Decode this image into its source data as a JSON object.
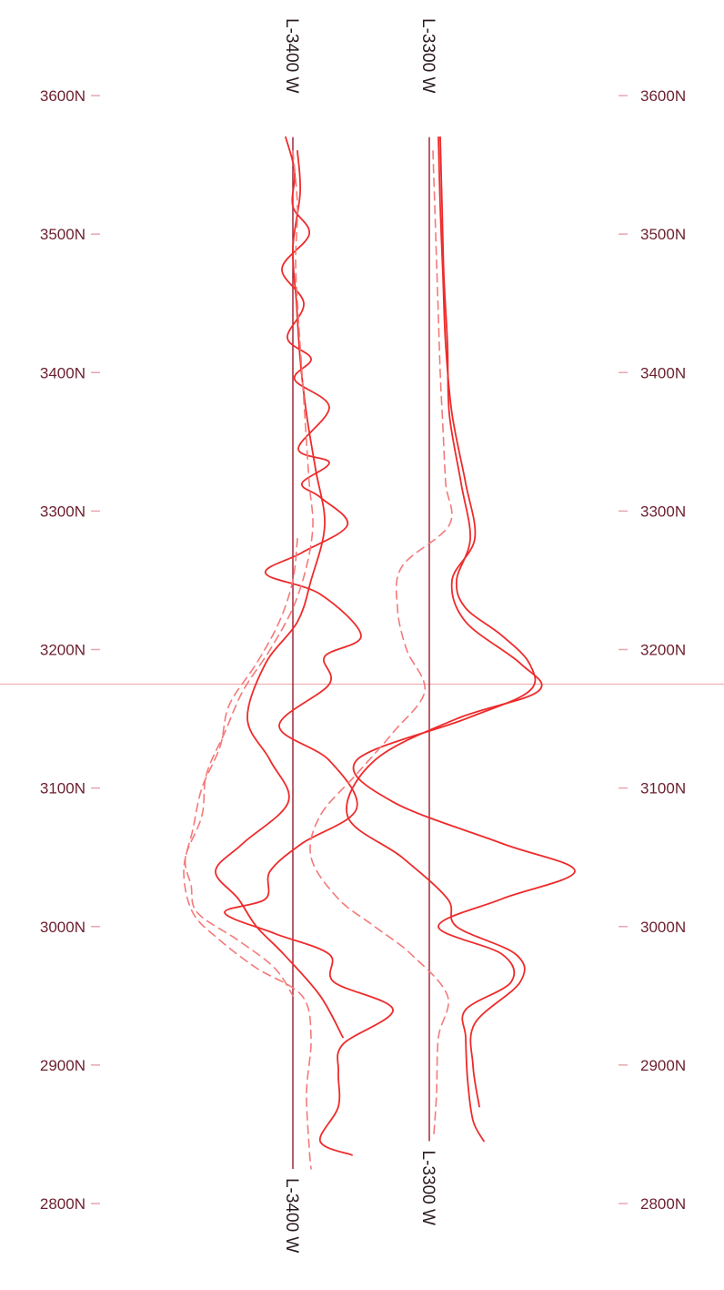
{
  "colors": {
    "trace": "#ee2b2b",
    "trace_light": "#f47a7a",
    "baseline": "#9a1b2e",
    "tick_text": "#6b1f2f",
    "tick_mark": "#e8a6ad",
    "reference_line": "#f3b0b0"
  },
  "chart_data": {
    "type": "line",
    "ylabel": "",
    "ylim": [
      2800,
      3600
    ],
    "y_ticks": [
      "3600N",
      "3500N",
      "3400N",
      "3300N",
      "3200N",
      "3100N",
      "3000N",
      "2900N",
      "2800N"
    ],
    "y_tick_values": [
      3600,
      3500,
      3400,
      3300,
      3200,
      3100,
      3000,
      2900,
      2800
    ],
    "grid": false,
    "reference_line_y": 3175,
    "survey_lines": [
      {
        "name": "L-3400 W",
        "label_top": "L-3400 W",
        "label_bottom": "L-3400 W",
        "y_range": [
          2825,
          3570
        ],
        "series": [
          {
            "style": "solid",
            "points": [
              [
                3570,
                -8
              ],
              [
                3545,
                2
              ],
              [
                3520,
                0
              ],
              [
                3500,
                18
              ],
              [
                3475,
                -12
              ],
              [
                3450,
                12
              ],
              [
                3425,
                -6
              ],
              [
                3410,
                20
              ],
              [
                3395,
                2
              ],
              [
                3375,
                40
              ],
              [
                3345,
                6
              ],
              [
                3335,
                40
              ],
              [
                3320,
                10
              ],
              [
                3310,
                30
              ],
              [
                3290,
                60
              ],
              [
                3270,
                10
              ],
              [
                3255,
                -30
              ],
              [
                3240,
                30
              ],
              [
                3210,
                75
              ],
              [
                3195,
                35
              ],
              [
                3175,
                40
              ],
              [
                3145,
                -15
              ],
              [
                3120,
                40
              ],
              [
                3085,
                70
              ],
              [
                3060,
                10
              ],
              [
                3040,
                -25
              ],
              [
                3020,
                -30
              ],
              [
                3010,
                -75
              ],
              [
                2995,
                -20
              ],
              [
                2980,
                40
              ],
              [
                2960,
                45
              ],
              [
                2940,
                110
              ],
              [
                2915,
                55
              ],
              [
                2895,
                50
              ],
              [
                2870,
                50
              ],
              [
                2845,
                30
              ],
              [
                2835,
                65
              ]
            ]
          },
          {
            "style": "solid",
            "points": [
              [
                3560,
                5
              ],
              [
                3530,
                8
              ],
              [
                3490,
                0
              ],
              [
                3450,
                4
              ],
              [
                3410,
                8
              ],
              [
                3370,
                15
              ],
              [
                3330,
                25
              ],
              [
                3290,
                35
              ],
              [
                3250,
                20
              ],
              [
                3220,
                5
              ],
              [
                3190,
                -30
              ],
              [
                3150,
                -50
              ],
              [
                3120,
                -25
              ],
              [
                3090,
                -5
              ],
              [
                3060,
                -55
              ],
              [
                3040,
                -85
              ],
              [
                3020,
                -60
              ],
              [
                3000,
                -40
              ],
              [
                2980,
                -10
              ],
              [
                2950,
                30
              ],
              [
                2920,
                55
              ]
            ]
          },
          {
            "style": "dashed",
            "points": [
              [
                3560,
                0
              ],
              [
                3520,
                5
              ],
              [
                3480,
                3
              ],
              [
                3440,
                6
              ],
              [
                3400,
                10
              ],
              [
                3360,
                14
              ],
              [
                3320,
                18
              ],
              [
                3290,
                22
              ],
              [
                3260,
                15
              ],
              [
                3230,
                0
              ],
              [
                3200,
                -25
              ],
              [
                3170,
                -55
              ],
              [
                3140,
                -75
              ],
              [
                3110,
                -95
              ],
              [
                3080,
                -100
              ],
              [
                3050,
                -118
              ],
              [
                3030,
                -112
              ],
              [
                3010,
                -105
              ],
              [
                2990,
                -60
              ],
              [
                2970,
                -20
              ],
              [
                2950,
                0
              ]
            ]
          },
          {
            "style": "dashed",
            "points": [
              [
                3280,
                5
              ],
              [
                3250,
                0
              ],
              [
                3220,
                -15
              ],
              [
                3190,
                -40
              ],
              [
                3160,
                -70
              ],
              [
                3130,
                -80
              ],
              [
                3100,
                -100
              ],
              [
                3070,
                -110
              ],
              [
                3040,
                -120
              ],
              [
                3010,
                -110
              ],
              [
                2990,
                -80
              ],
              [
                2970,
                -40
              ],
              [
                2950,
                10
              ],
              [
                2920,
                20
              ],
              [
                2880,
                15
              ],
              [
                2840,
                18
              ],
              [
                2825,
                20
              ]
            ]
          }
        ]
      },
      {
        "name": "L-3300 W",
        "label_top": "L-3300 W",
        "label_bottom": "L-3300 W",
        "y_range": [
          2845,
          3570
        ],
        "series": [
          {
            "style": "solid",
            "points": [
              [
                3570,
                12
              ],
              [
                3520,
                14
              ],
              [
                3470,
                16
              ],
              [
                3420,
                20
              ],
              [
                3370,
                22
              ],
              [
                3320,
                35
              ],
              [
                3280,
                45
              ],
              [
                3250,
                30
              ],
              [
                3230,
                40
              ],
              [
                3210,
                80
              ],
              [
                3190,
                110
              ],
              [
                3170,
                110
              ],
              [
                3150,
                40
              ],
              [
                3120,
                -80
              ],
              [
                3090,
                -40
              ],
              [
                3060,
                80
              ],
              [
                3040,
                160
              ],
              [
                3020,
                80
              ],
              [
                3000,
                10
              ],
              [
                2980,
                80
              ],
              [
                2960,
                90
              ],
              [
                2940,
                40
              ],
              [
                2920,
                40
              ],
              [
                2890,
                42
              ],
              [
                2860,
                48
              ],
              [
                2845,
                60
              ]
            ]
          },
          {
            "style": "solid",
            "points": [
              [
                3570,
                10
              ],
              [
                3520,
                12
              ],
              [
                3470,
                15
              ],
              [
                3420,
                18
              ],
              [
                3370,
                25
              ],
              [
                3320,
                40
              ],
              [
                3280,
                50
              ],
              [
                3250,
                25
              ],
              [
                3220,
                40
              ],
              [
                3190,
                100
              ],
              [
                3170,
                120
              ],
              [
                3150,
                30
              ],
              [
                3120,
                -60
              ],
              [
                3080,
                -90
              ],
              [
                3050,
                -30
              ],
              [
                3020,
                20
              ],
              [
                3000,
                30
              ],
              [
                2980,
                95
              ],
              [
                2960,
                100
              ],
              [
                2930,
                50
              ],
              [
                2900,
                48
              ],
              [
                2870,
                55
              ]
            ]
          },
          {
            "style": "dashed",
            "points": [
              [
                3560,
                4
              ],
              [
                3520,
                6
              ],
              [
                3480,
                8
              ],
              [
                3440,
                10
              ],
              [
                3400,
                12
              ],
              [
                3360,
                15
              ],
              [
                3320,
                18
              ],
              [
                3290,
                22
              ],
              [
                3260,
                -30
              ],
              [
                3230,
                -35
              ],
              [
                3200,
                -25
              ],
              [
                3170,
                -5
              ],
              [
                3140,
                -40
              ],
              [
                3110,
                -80
              ],
              [
                3080,
                -120
              ],
              [
                3050,
                -130
              ],
              [
                3020,
                -100
              ],
              [
                3000,
                -60
              ],
              [
                2980,
                -20
              ],
              [
                2950,
                20
              ],
              [
                2920,
                10
              ],
              [
                2880,
                8
              ],
              [
                2850,
                5
              ]
            ]
          }
        ]
      }
    ]
  }
}
